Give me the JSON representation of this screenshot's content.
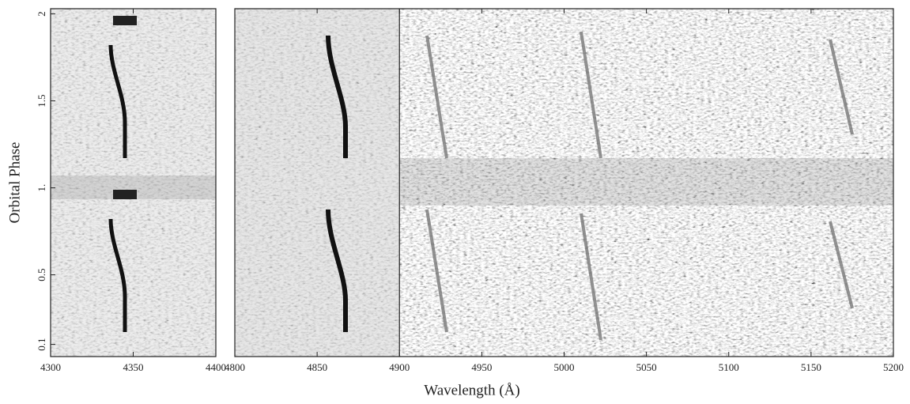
{
  "chart_data": [
    {
      "type": "trailed-spectrum",
      "y_label": "Orbital Phase",
      "xlim": [
        4300,
        4400
      ],
      "xticks": [
        4300,
        4350,
        4400
      ],
      "ylim": [
        0.03,
        2.03
      ],
      "yticks": [
        0.1,
        0.5,
        {
          "value": 1,
          "label": "1."
        },
        1.5,
        2
      ]
    },
    {
      "type": "trailed-spectrum",
      "x_label": "Wavelength (Å)",
      "xlim": [
        4800,
        5200
      ],
      "xticks": [
        4800,
        4850,
        4900,
        4950,
        5000,
        5050,
        5100,
        5150,
        5200
      ],
      "ylim": [
        0.03,
        2.03
      ],
      "vline": 4900
    }
  ]
}
